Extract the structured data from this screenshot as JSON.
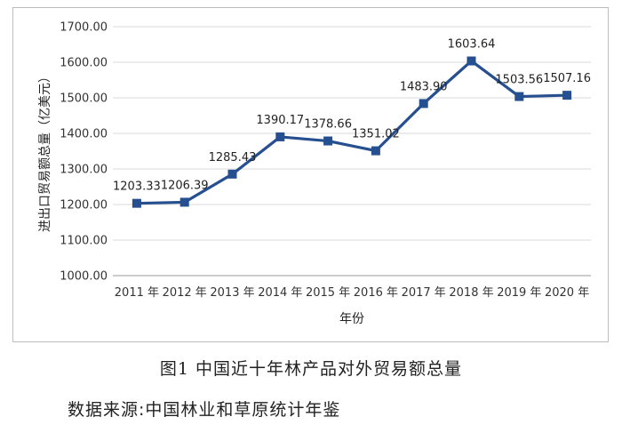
{
  "chart_data": {
    "type": "line",
    "title": "",
    "xlabel": "年份",
    "ylabel": "进出口贸易额总量（亿美元）",
    "categories": [
      "2011 年",
      "2012 年",
      "2013 年",
      "2014 年",
      "2015 年",
      "2016 年",
      "2017 年",
      "2018 年",
      "2019 年",
      "2020 年"
    ],
    "series": [
      {
        "values": [
          1203.33,
          1206.39,
          1285.43,
          1390.17,
          1378.66,
          1351.02,
          1483.9,
          1603.64,
          1503.56,
          1507.16
        ]
      }
    ],
    "data_labels": [
      "1203.33",
      "1206.39",
      "1285.43",
      "1390.17",
      "1378.66",
      "1351.02",
      "1483.90",
      "1603.64",
      "1503.56",
      "1507.16"
    ],
    "ylim": [
      1000,
      1700
    ],
    "yticks": [
      1000,
      1100,
      1200,
      1300,
      1400,
      1500,
      1600,
      1700
    ],
    "ytick_labels": [
      "1000.00",
      "1100.00",
      "1200.00",
      "1300.00",
      "1400.00",
      "1500.00",
      "1600.00",
      "1700.00"
    ],
    "grid": true,
    "legend": "none",
    "line_color": "#254f8f"
  },
  "caption": "图1  中国近十年林产品对外贸易额总量",
  "source": "数据来源:中国林业和草原统计年鉴"
}
